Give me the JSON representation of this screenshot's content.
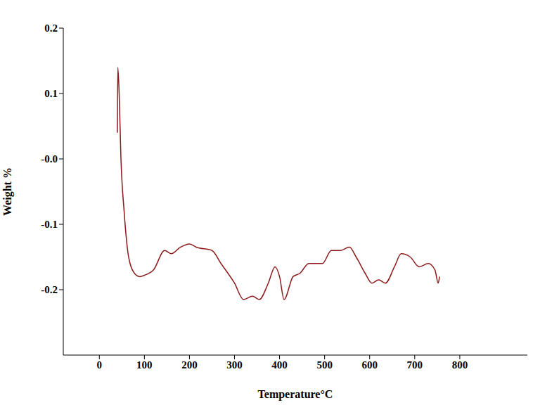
{
  "chart_data": {
    "type": "line",
    "x_label": "Temperature°C",
    "y_label": "Weight %",
    "color": "#8b1a1a",
    "x": [
      40,
      41,
      44,
      48,
      55,
      65,
      78,
      90,
      100,
      120,
      145,
      160,
      180,
      200,
      215,
      250,
      270,
      300,
      320,
      340,
      355,
      375,
      390,
      400,
      410,
      430,
      445,
      465,
      480,
      495,
      515,
      535,
      555,
      570,
      590,
      605,
      620,
      635,
      655,
      670,
      690,
      710,
      730,
      745,
      752,
      755
    ],
    "values": [
      0.04,
      0.14,
      0.1,
      0.0,
      -0.08,
      -0.15,
      -0.175,
      -0.18,
      -0.178,
      -0.17,
      -0.14,
      -0.145,
      -0.135,
      -0.13,
      -0.135,
      -0.14,
      -0.16,
      -0.19,
      -0.215,
      -0.21,
      -0.215,
      -0.19,
      -0.165,
      -0.18,
      -0.215,
      -0.18,
      -0.175,
      -0.16,
      -0.16,
      -0.16,
      -0.14,
      -0.14,
      -0.135,
      -0.15,
      -0.175,
      -0.19,
      -0.185,
      -0.19,
      -0.165,
      -0.145,
      -0.15,
      -0.165,
      -0.16,
      -0.17,
      -0.19,
      -0.18
    ],
    "xlim": [
      -80,
      950
    ],
    "xticks": [
      0,
      100,
      200,
      300,
      400,
      500,
      600,
      700,
      800
    ],
    "ylim": [
      -0.3,
      0.2
    ],
    "yticks": [
      0.2,
      0.1,
      {
        "value": 0,
        "label": "-0.0"
      },
      -0.1,
      -0.2
    ]
  }
}
